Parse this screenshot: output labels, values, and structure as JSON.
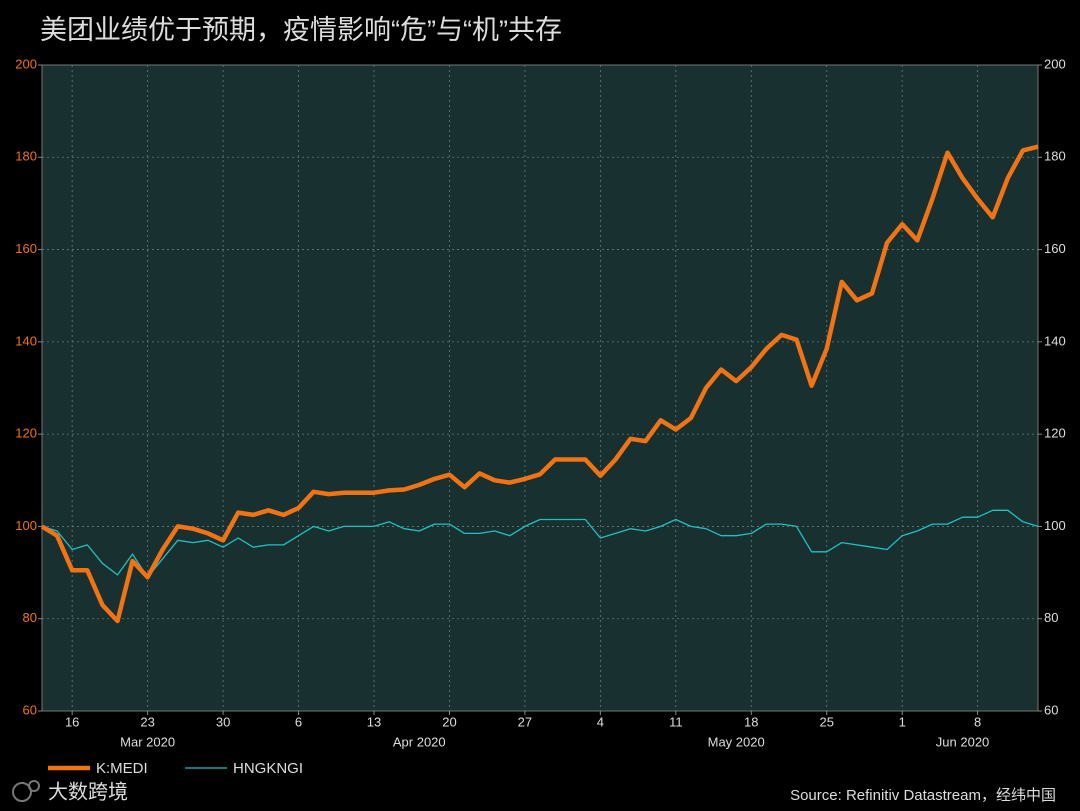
{
  "chart_data": {
    "type": "line",
    "title": "美团业绩优于预期，疫情影响“危”与“机”共存",
    "source": "Source: Refinitiv Datastream，经纬中国",
    "watermark": "大数跨境",
    "x": [
      "2020-03-12",
      "2020-03-13",
      "2020-03-16",
      "2020-03-17",
      "2020-03-18",
      "2020-03-19",
      "2020-03-20",
      "2020-03-23",
      "2020-03-24",
      "2020-03-25",
      "2020-03-26",
      "2020-03-27",
      "2020-03-30",
      "2020-03-31",
      "2020-04-01",
      "2020-04-02",
      "2020-04-03",
      "2020-04-06",
      "2020-04-07",
      "2020-04-08",
      "2020-04-09",
      "2020-04-10",
      "2020-04-13",
      "2020-04-14",
      "2020-04-15",
      "2020-04-16",
      "2020-04-17",
      "2020-04-20",
      "2020-04-21",
      "2020-04-22",
      "2020-04-23",
      "2020-04-24",
      "2020-04-27",
      "2020-04-28",
      "2020-04-29",
      "2020-04-30",
      "2020-05-01",
      "2020-05-04",
      "2020-05-05",
      "2020-05-06",
      "2020-05-07",
      "2020-05-08",
      "2020-05-11",
      "2020-05-12",
      "2020-05-13",
      "2020-05-14",
      "2020-05-15",
      "2020-05-18",
      "2020-05-19",
      "2020-05-20",
      "2020-05-21",
      "2020-05-22",
      "2020-05-25",
      "2020-05-26",
      "2020-05-27",
      "2020-05-28",
      "2020-05-29",
      "2020-06-01",
      "2020-06-02",
      "2020-06-03",
      "2020-06-04",
      "2020-06-05",
      "2020-06-08",
      "2020-06-09",
      "2020-06-10",
      "2020-06-11",
      "2020-06-12"
    ],
    "series": [
      {
        "name": "K:MEDI",
        "color": "#f07316",
        "width": 4.5,
        "values": [
          100,
          98,
          90.5,
          90.5,
          83,
          79.5,
          92.5,
          89,
          95,
          100,
          99.5,
          98.5,
          97,
          103,
          102.5,
          103.5,
          102.5,
          104,
          107.5,
          107,
          107.3,
          107.3,
          107.3,
          107.8,
          108,
          109,
          110.3,
          111.2,
          108.5,
          111.5,
          110,
          109.5,
          110.3,
          111.3,
          114.5,
          114.5,
          114.5,
          111,
          114.5,
          119,
          118.5,
          123,
          121,
          123.5,
          130,
          134,
          131.5,
          134.5,
          138.5,
          141.5,
          140.5,
          130.5,
          138.5,
          153,
          149,
          150.5,
          161.5,
          165.5,
          162,
          171,
          181,
          175.5,
          171,
          167,
          175.5,
          181.5,
          182.3
        ]
      },
      {
        "name": "HNGKNGI",
        "color": "#1fc2c2",
        "width": 1.3,
        "values": [
          100,
          99,
          95,
          96,
          92,
          89.5,
          94,
          89,
          93,
          97,
          96.5,
          97,
          95.5,
          97.5,
          95.5,
          96,
          96,
          98,
          100,
          99,
          100,
          100,
          100,
          101,
          99.5,
          99,
          100.5,
          100.5,
          98.5,
          98.5,
          99,
          98,
          100,
          101.5,
          101.5,
          101.5,
          101.5,
          97.5,
          98.5,
          99.5,
          99,
          100,
          101.5,
          100,
          99.5,
          98,
          98,
          98.5,
          100.5,
          100.5,
          100,
          94.5,
          94.5,
          96.5,
          96,
          95.5,
          95,
          98,
          99,
          100.5,
          100.5,
          102,
          102,
          103.5,
          103.5,
          101,
          100
        ]
      }
    ],
    "xticks": [
      {
        "value": "2020-03-16",
        "label": "16"
      },
      {
        "value": "2020-03-23",
        "label": "23"
      },
      {
        "value": "2020-03-30",
        "label": "30"
      },
      {
        "value": "2020-04-06",
        "label": "6"
      },
      {
        "value": "2020-04-13",
        "label": "13"
      },
      {
        "value": "2020-04-20",
        "label": "20"
      },
      {
        "value": "2020-04-27",
        "label": "27"
      },
      {
        "value": "2020-05-04",
        "label": "4"
      },
      {
        "value": "2020-05-11",
        "label": "11"
      },
      {
        "value": "2020-05-18",
        "label": "18"
      },
      {
        "value": "2020-05-25",
        "label": "25"
      },
      {
        "value": "2020-06-01",
        "label": "1"
      },
      {
        "value": "2020-06-08",
        "label": "8"
      }
    ],
    "month_labels": [
      {
        "value": "2020-03-23",
        "label": "Mar 2020"
      },
      {
        "value": "2020-04-16",
        "label": "Apr 2020"
      },
      {
        "value": "2020-05-15",
        "label": "May 2020"
      },
      {
        "value": "2020-06-05",
        "label": "Jun 2020"
      }
    ],
    "ylim": [
      60,
      200
    ],
    "yticks": [
      60,
      80,
      100,
      120,
      140,
      160,
      180,
      200
    ],
    "y2lim": [
      60,
      200
    ],
    "y2ticks": [
      60,
      80,
      100,
      120,
      140,
      160,
      180,
      200
    ],
    "grid": true
  }
}
